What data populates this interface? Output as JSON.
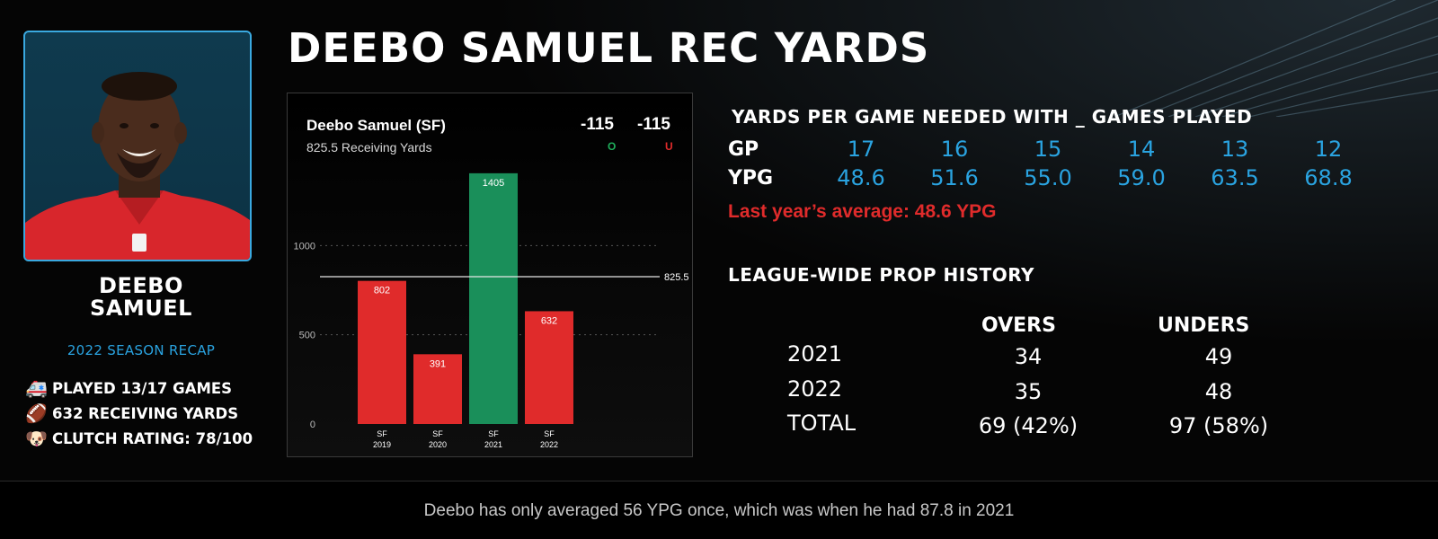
{
  "title": "DEEBO SAMUEL REC YARDS",
  "player": {
    "name_line1": "DEEBO",
    "name_line2": "SAMUEL",
    "season_recap": "2022 SEASON RECAP",
    "recap_items": [
      {
        "icon": "ambulance-icon",
        "glyph": "🚑",
        "text": "PLAYED 13/17 GAMES"
      },
      {
        "icon": "football-icon",
        "glyph": "🏈",
        "text": "632 RECEIVING YARDS"
      },
      {
        "icon": "animal-face-icon",
        "glyph": "🐶",
        "text": "CLUTCH RATING: 78/100"
      }
    ]
  },
  "chart_card": {
    "player_line": "Deebo Samuel (SF)",
    "prop_line": "825.5 Receiving Yards",
    "over_odds": "-115",
    "under_odds": "-115",
    "over_label": "O",
    "under_label": "U"
  },
  "chart_data": {
    "type": "bar",
    "categories": [
      "SF\n2019",
      "SF\n2020",
      "SF\n2021",
      "SF\n2022"
    ],
    "category_team": [
      "SF",
      "SF",
      "SF",
      "SF"
    ],
    "category_year": [
      "2019",
      "2020",
      "2021",
      "2022"
    ],
    "values": [
      802,
      391,
      1405,
      632
    ],
    "bar_colors": [
      "#e02b2b",
      "#e02b2b",
      "#1a8f5a",
      "#e02b2b"
    ],
    "reference_line": {
      "value": 825.5,
      "label": "825.5"
    },
    "yticks": [
      0,
      500,
      1000
    ],
    "ylim": [
      0,
      1500
    ],
    "grid": true,
    "title": "",
    "xlabel": "",
    "ylabel": ""
  },
  "ypg_section": {
    "title": "YARDS PER GAME NEEDED WITH _ GAMES PLAYED",
    "gp_label": "GP",
    "ypg_label": "YPG",
    "gp": [
      "17",
      "16",
      "15",
      "14",
      "13",
      "12"
    ],
    "ypg": [
      "48.6",
      "51.6",
      "55.0",
      "59.0",
      "63.5",
      "68.8"
    ],
    "last_year": "Last year’s average: 48.6 YPG"
  },
  "prop_history": {
    "title": "LEAGUE-WIDE PROP HISTORY",
    "overs_label": "OVERS",
    "unders_label": "UNDERS",
    "rows": [
      {
        "label": "2021",
        "overs": "34",
        "unders": "49"
      },
      {
        "label": "2022",
        "overs": "35",
        "unders": "48"
      },
      {
        "label": "TOTAL",
        "overs": "69 (42%)",
        "unders": "97 (58%)"
      }
    ]
  },
  "footer": "Deebo has only averaged 56 YPG once, which was when he had 87.8 in 2021",
  "colors": {
    "accent_blue": "#2aa3e0",
    "red": "#e02b2b",
    "green": "#1a8f5a",
    "under_red": "#e02b2b",
    "over_green": "#1a8f5a"
  }
}
